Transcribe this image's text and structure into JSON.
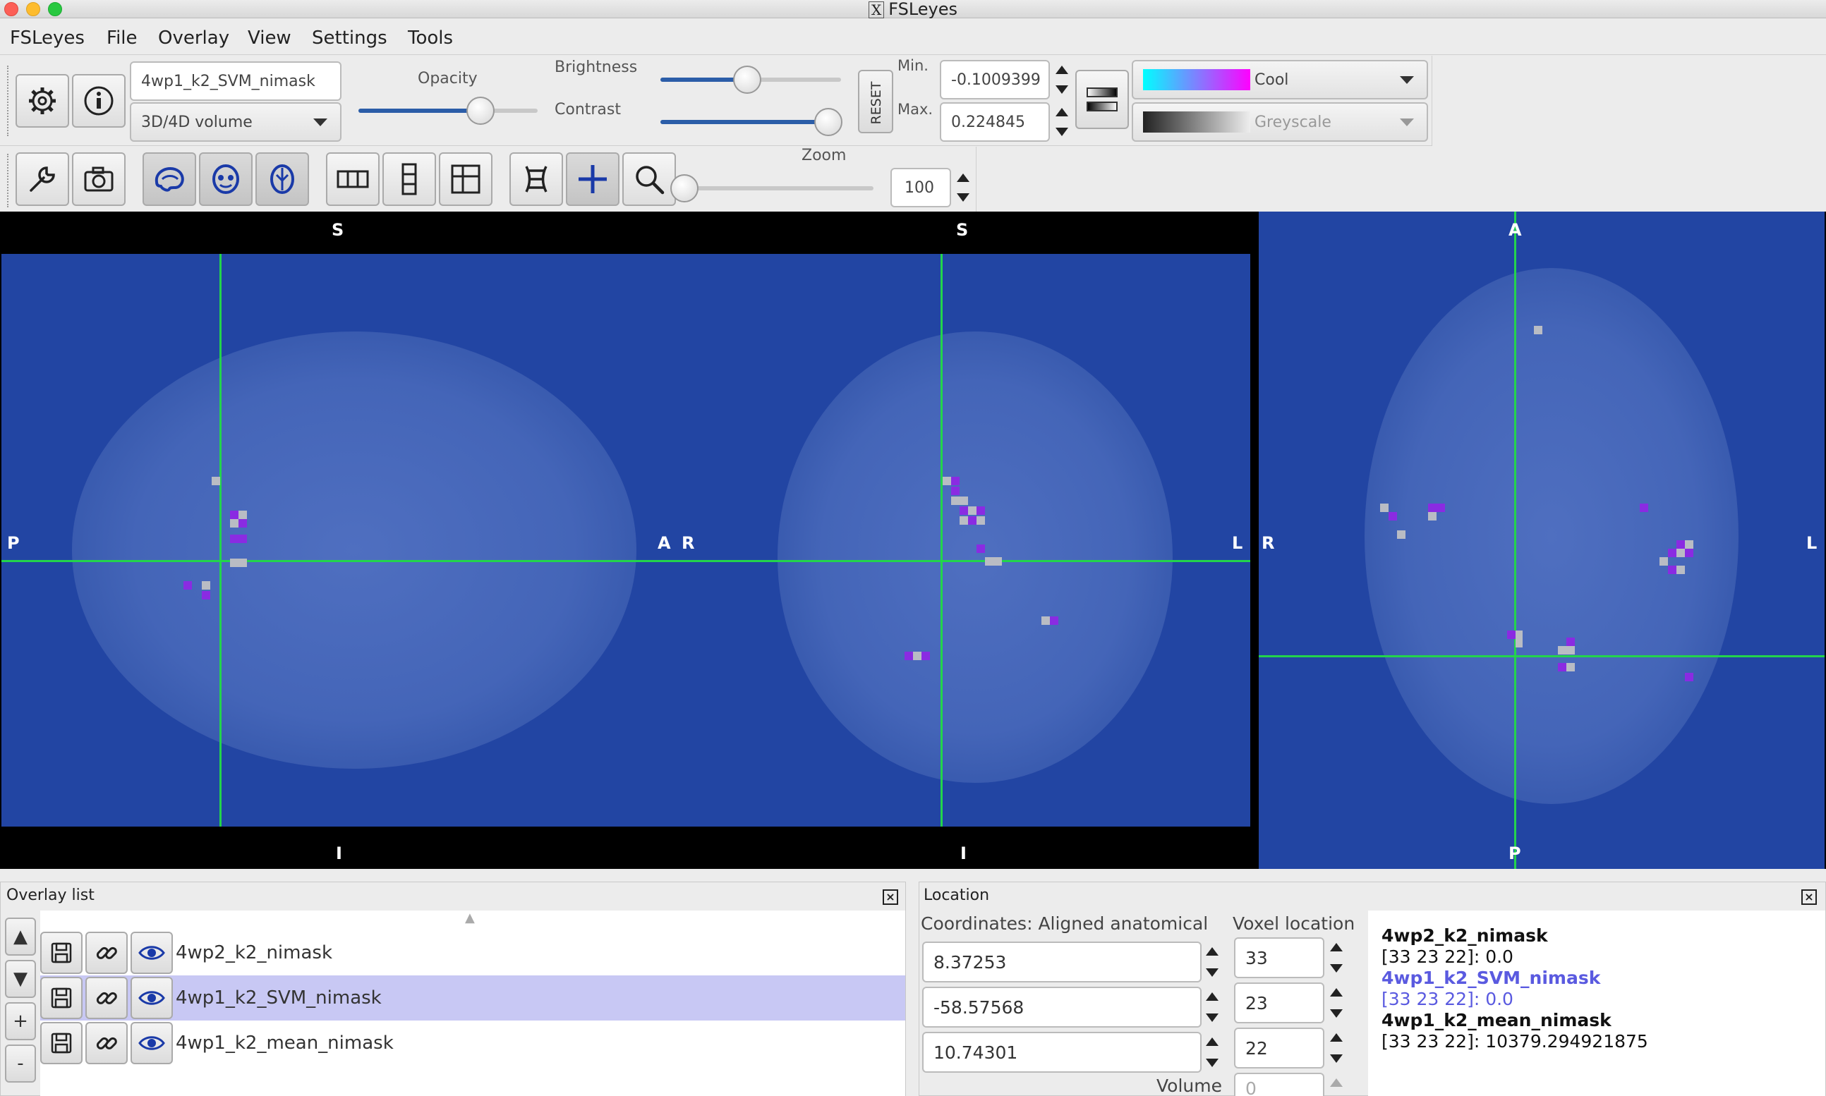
{
  "window": {
    "title": "FSLeyes",
    "x_label": "X"
  },
  "menu": [
    "FSLeyes",
    "File",
    "Overlay",
    "View",
    "Settings",
    "Tools"
  ],
  "overlay_toolbar": {
    "name_value": "4wp1_k2_SVM_nimask",
    "type_value": "3D/4D volume",
    "opacity_label": "Opacity",
    "brightness_label": "Brightness",
    "contrast_label": "Contrast",
    "reset_label": "RESET",
    "min_label": "Min.",
    "max_label": "Max.",
    "min_value": "-0.1009399",
    "max_value": "0.224845",
    "opacity_level": 0.68,
    "brightness_level": 0.48,
    "contrast_level": 0.93,
    "cmap_primary": "Cool",
    "cmap_secondary": "Greyscale"
  },
  "ortho_toolbar": {
    "zoom_label": "Zoom",
    "zoom_value": "100",
    "zoom_level": 0.0
  },
  "views": {
    "sagittal": {
      "top": "S",
      "bottom": "I",
      "left": "P",
      "right": "A"
    },
    "coronal": {
      "top": "S",
      "bottom": "I",
      "left": "R",
      "right": "L"
    },
    "axial": {
      "top": "A",
      "bottom": "P",
      "left": "R",
      "right": "L"
    }
  },
  "overlay_list": {
    "title": "Overlay list",
    "items": [
      {
        "name": "4wp2_k2_nimask",
        "selected": false
      },
      {
        "name": "4wp1_k2_SVM_nimask",
        "selected": true
      },
      {
        "name": "4wp1_k2_mean_nimask",
        "selected": false
      }
    ],
    "side_buttons": [
      "▲",
      "▼",
      "+",
      "-"
    ]
  },
  "location": {
    "title": "Location",
    "coords_label": "Coordinates: Aligned anatomical",
    "voxel_label": "Voxel location",
    "coords": [
      "8.37253",
      "-58.57568",
      "10.74301"
    ],
    "voxels": [
      "33",
      "23",
      "22"
    ],
    "volume_label": "Volume",
    "volume_value": "0",
    "info": [
      {
        "text": "4wp2_k2_nimask",
        "style": "bold"
      },
      {
        "text": "[33 23 22]: 0.0",
        "style": "normal"
      },
      {
        "text": "4wp1_k2_SVM_nimask",
        "style": "hl-bold"
      },
      {
        "text": "[33 23 22]: 0.0",
        "style": "hl"
      },
      {
        "text": "4wp1_k2_mean_nimask",
        "style": "bold"
      },
      {
        "text": "[33 23 22]: 10379.294921875",
        "style": "normal"
      }
    ]
  },
  "colors": {
    "crosshair": "#23d44c",
    "background": "#2245a3",
    "voxel_purple": "#8a2be2",
    "voxel_grey": "#b9bcc4",
    "selection": "#c8c8f4"
  }
}
